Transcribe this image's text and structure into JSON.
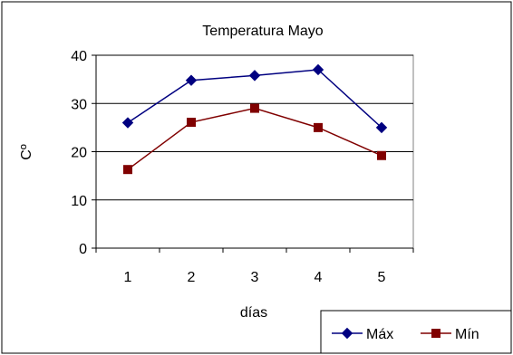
{
  "chart_data": {
    "type": "line",
    "title": "Temperatura  Mayo",
    "xlabel": "días",
    "ylabel": "Cº",
    "x": [
      "1",
      "2",
      "3",
      "4",
      "5"
    ],
    "ylim": [
      0,
      40
    ],
    "yticks": [
      "0",
      "10",
      "20",
      "30",
      "40"
    ],
    "grid": true,
    "legend_position": "bottom-right",
    "series": [
      {
        "name": "Máx",
        "values": [
          26,
          34.8,
          35.8,
          37,
          25
        ],
        "color": "#000080",
        "marker": "diamond"
      },
      {
        "name": "Mín",
        "values": [
          16.3,
          26.1,
          29,
          25,
          19.2
        ],
        "color": "#800000",
        "marker": "square"
      }
    ]
  }
}
